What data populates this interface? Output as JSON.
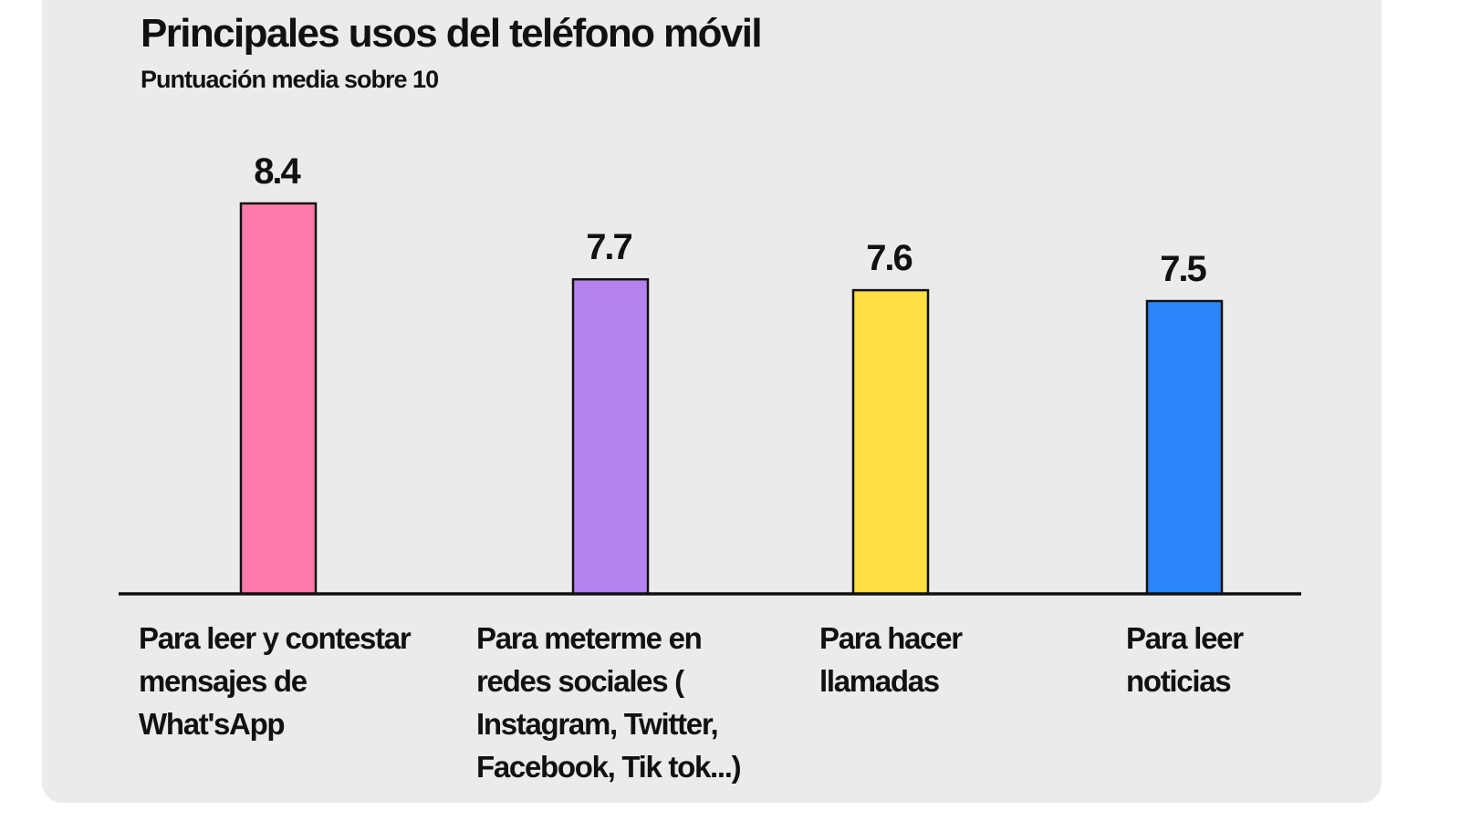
{
  "chart_data": {
    "type": "bar",
    "title": "Principales usos del teléfono móvil",
    "subtitle": "Puntuación media sobre 10",
    "categories": [
      [
        "Para leer y contestar",
        "mensajes de",
        "What'sApp"
      ],
      [
        "Para meterme en",
        "redes sociales (",
        "Instagram, Twitter,",
        "Facebook, Tik tok...)"
      ],
      [
        "Para hacer",
        "llamadas"
      ],
      [
        "Para leer",
        "noticias"
      ]
    ],
    "values": [
      8.4,
      7.7,
      7.6,
      7.5
    ],
    "data_labels": [
      "8.4",
      "7.7",
      "7.6",
      "7.5"
    ],
    "colors": [
      "#ff7bab",
      "#b583f0",
      "#ffdf44",
      "#2a85fb"
    ],
    "xlabel": "",
    "ylabel": "",
    "ylim": [
      4.8,
      10
    ],
    "grid": false,
    "legend": "none"
  }
}
